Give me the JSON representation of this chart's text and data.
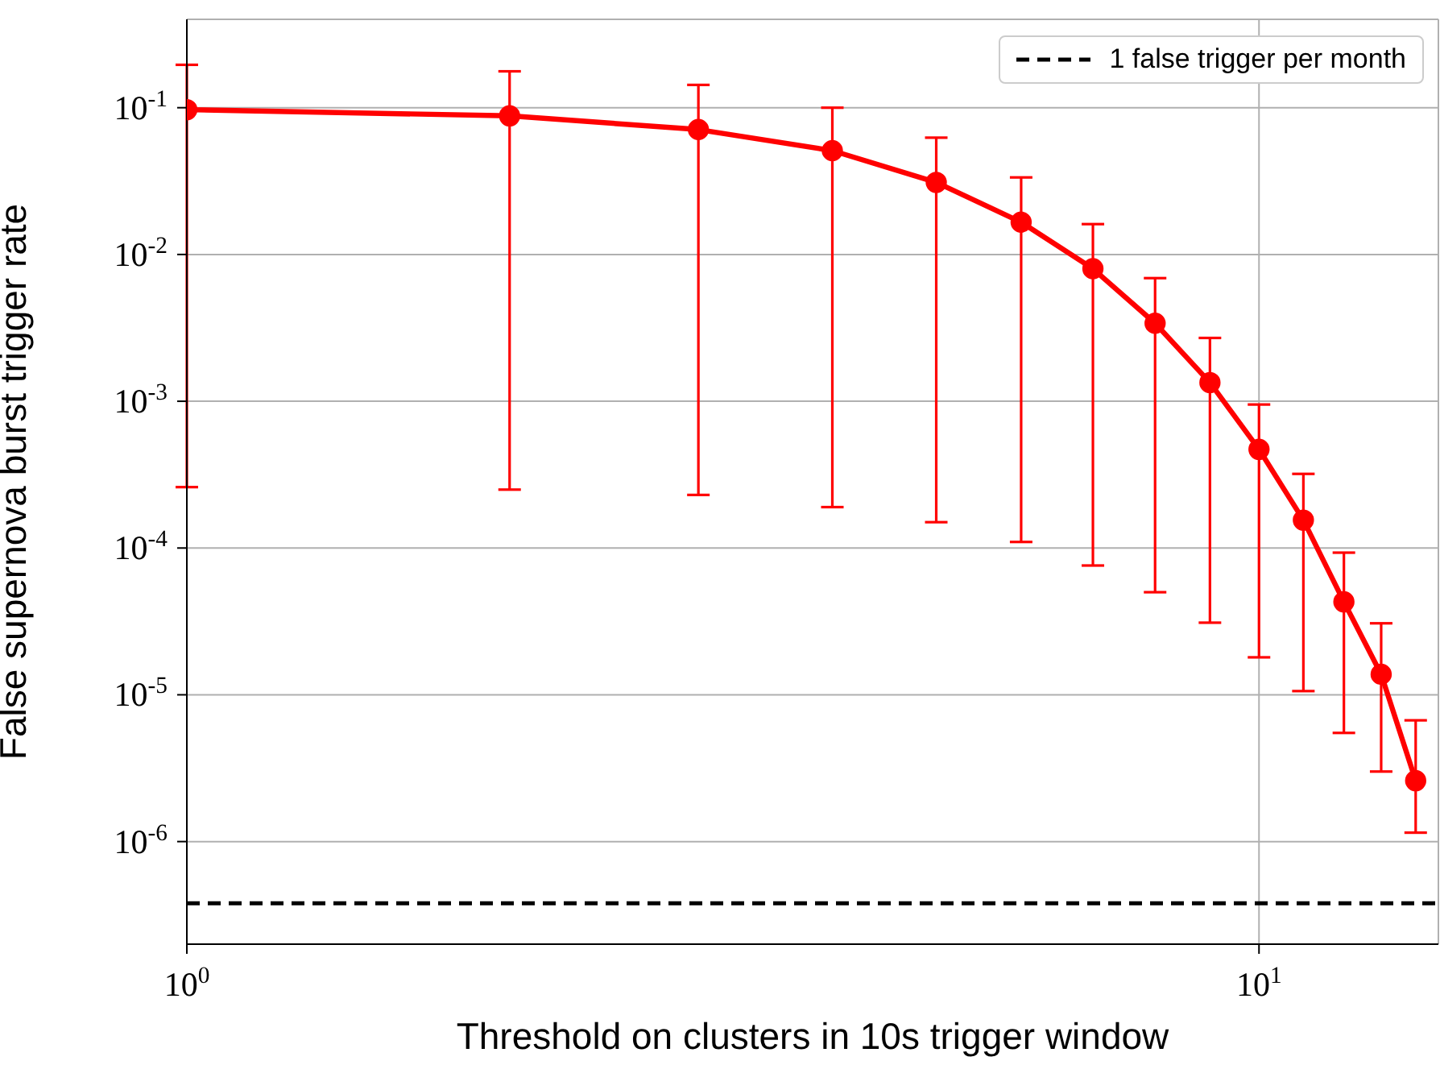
{
  "chart_data": {
    "type": "line",
    "xlabel": "Threshold on clusters in 10s trigger window",
    "ylabel": "False supernova burst trigger rate",
    "x": [
      1,
      2,
      3,
      4,
      5,
      6,
      7,
      8,
      9,
      10,
      11,
      12,
      13,
      14
    ],
    "series": [
      {
        "color": "#ff0000",
        "values": [
          0.097,
          0.088,
          0.071,
          0.051,
          0.031,
          0.0166,
          0.008,
          0.0034,
          0.00134,
          0.00047,
          0.000155,
          4.3e-05,
          1.38e-05,
          2.6e-06
        ],
        "errors": [
          [
            0.00026,
            0.196
          ],
          [
            0.00025,
            0.177
          ],
          [
            0.00023,
            0.143
          ],
          [
            0.00019,
            0.1
          ],
          [
            0.00015,
            0.0625
          ],
          [
            0.00011,
            0.0335
          ],
          [
            7.6e-05,
            0.0161
          ],
          [
            5e-05,
            0.0069
          ],
          [
            3.1e-05,
            0.0027
          ],
          [
            1.8e-05,
            0.00095
          ],
          [
            1.06e-05,
            0.00032
          ],
          [
            5.5e-06,
            9.3e-05
          ],
          [
            3e-06,
            3.07e-05
          ],
          [
            1.15e-06,
            6.7e-06
          ]
        ]
      }
    ],
    "log": "xy",
    "xlim": [
      1,
      14.7
    ],
    "xticks": [
      {
        "value": 1,
        "label": "10$^{0}$"
      },
      {
        "value": 10,
        "label": "10$^{1}$"
      }
    ],
    "ylim": [
      2e-07,
      0.4
    ],
    "yticks": [
      {
        "value": 1e-06,
        "label": "10$^{-6}$"
      },
      {
        "value": 1e-05,
        "label": "10$^{-5}$"
      },
      {
        "value": 0.0001,
        "label": "10$^{-4}$"
      },
      {
        "value": 0.001,
        "label": "10$^{-3}$"
      },
      {
        "value": 0.01,
        "label": "10$^{-2}$"
      },
      {
        "value": 0.1,
        "label": "10$^{-1}$"
      }
    ],
    "ref_lines": [
      {
        "axis": "y",
        "value": 3.8e-07,
        "label": "1 false trigger per month",
        "color": "#000000",
        "line_style": "dashed"
      }
    ],
    "grid": true,
    "legend": "top right",
    "marker": "circle",
    "line_style": "solid"
  }
}
